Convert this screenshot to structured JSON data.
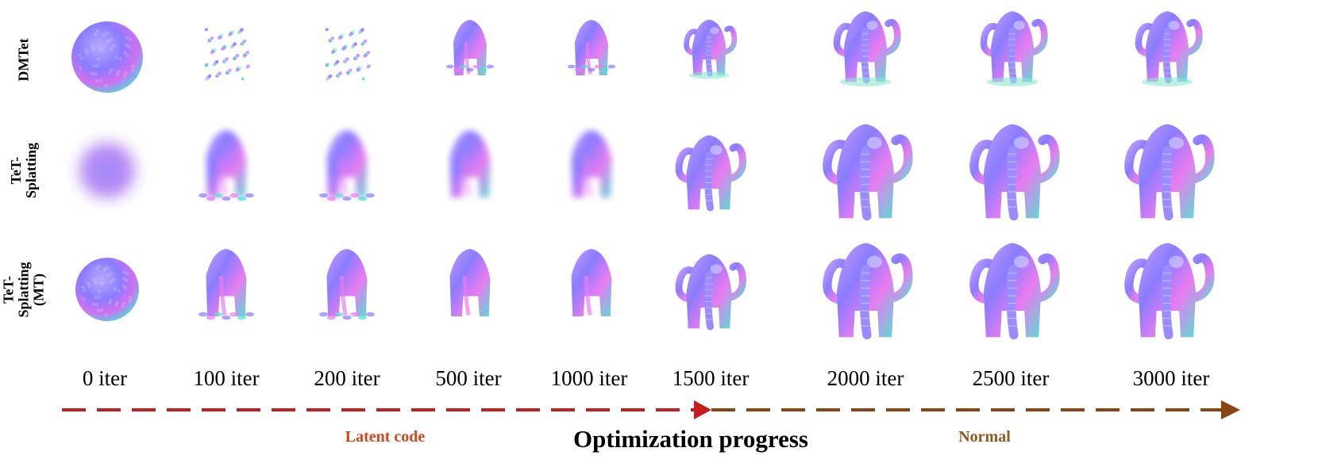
{
  "rows": [
    {
      "label": "DMTet"
    },
    {
      "label": "TeT-Splatting"
    },
    {
      "label": "TeT-Splatting\n(MT)"
    }
  ],
  "iterations": [
    "0 iter",
    "100 iter",
    "200 iter",
    "500 iter",
    "1000 iter",
    "1500 iter",
    "2000 iter",
    "2500 iter",
    "3000 iter"
  ],
  "phases": {
    "latent": {
      "label": "Latent code",
      "color": "#d2461c"
    },
    "normal": {
      "label": "Normal",
      "color": "#8a5a1e"
    }
  },
  "title": "Optimization progress",
  "colors": {
    "latent_arrow": "#c41e1e",
    "normal_arrow": "#8b4513",
    "normal_map_a": "#8a7cff",
    "normal_map_b": "#e87cf0",
    "normal_map_c": "#4fe0d0"
  }
}
